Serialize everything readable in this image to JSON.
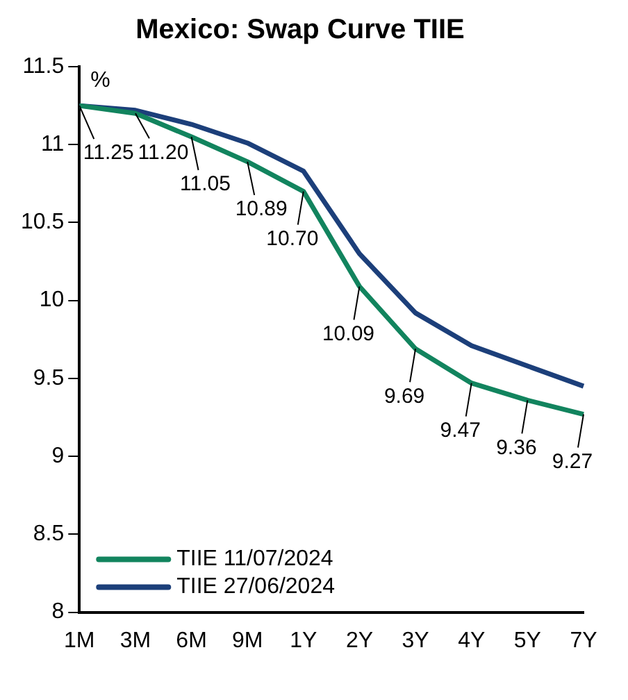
{
  "chart_data": {
    "type": "line",
    "title": "Mexico: Swap Curve TIIE",
    "ylabel": "%",
    "categories": [
      "1M",
      "3M",
      "6M",
      "9M",
      "1Y",
      "2Y",
      "3Y",
      "4Y",
      "5Y",
      "7Y"
    ],
    "series": [
      {
        "name": "TIIE 11/07/2024",
        "color": "#12845e",
        "values": [
          11.25,
          11.2,
          11.05,
          10.89,
          10.7,
          10.09,
          9.69,
          9.47,
          9.36,
          9.27
        ],
        "value_labels": [
          "11.25",
          "11.20",
          "11.05",
          "10.89",
          "10.70",
          "10.09",
          "9.69",
          "9.47",
          "9.36",
          "9.27"
        ]
      },
      {
        "name": "TIIE 27/06/2024",
        "color": "#1c3f7a",
        "values": [
          11.25,
          11.22,
          11.13,
          11.01,
          10.83,
          10.3,
          9.92,
          9.71,
          9.58,
          9.45
        ]
      }
    ],
    "ylim": [
      8,
      11.5
    ],
    "yticks": [
      8,
      8.5,
      9,
      9.5,
      10,
      10.5,
      11,
      11.5
    ],
    "grid": false,
    "legend": "bottom left",
    "marker": "none",
    "line_style": "solid"
  }
}
